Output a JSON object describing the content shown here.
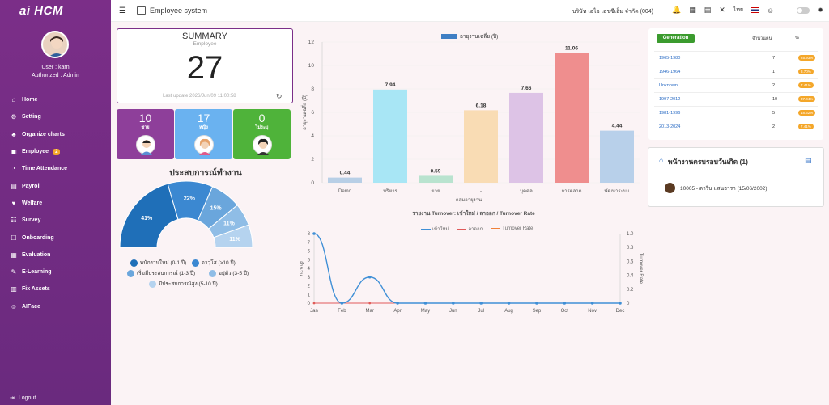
{
  "app": {
    "logo": "ai HCM",
    "system_title": "Employee system",
    "company": "บริษัท เอไอ เอชซีเอ็ม จำกัด (004)",
    "lang": "ไทย"
  },
  "user": {
    "name_line": "User : karn",
    "role_line": "Authorized : Admin"
  },
  "sidebar": {
    "items": [
      {
        "label": "Home",
        "icon": "home-icon"
      },
      {
        "label": "Setting",
        "icon": "settings-icon"
      },
      {
        "label": "Organize charts",
        "icon": "org-chart-icon"
      },
      {
        "label": "Employee",
        "icon": "employee-icon",
        "badge": "2"
      },
      {
        "label": "Time Attendance",
        "icon": "clock-icon"
      },
      {
        "label": "Payroll",
        "icon": "payroll-icon"
      },
      {
        "label": "Welfare",
        "icon": "welfare-icon"
      },
      {
        "label": "Survey",
        "icon": "survey-icon"
      },
      {
        "label": "Onboarding",
        "icon": "onboarding-icon"
      },
      {
        "label": "Evaluation",
        "icon": "evaluation-icon"
      },
      {
        "label": "E-Learning",
        "icon": "elearning-icon"
      },
      {
        "label": "Fix Assets",
        "icon": "assets-icon"
      },
      {
        "label": "AIFace",
        "icon": "face-icon"
      }
    ],
    "logout": "Logout"
  },
  "summary": {
    "title": "SUMMARY",
    "subtitle": "Employee",
    "count": "27",
    "updated": "Last update 2026/Jun/09 11:00:58"
  },
  "gender": [
    {
      "count": "10",
      "label": "ชาย",
      "color": "#8e3f9a"
    },
    {
      "count": "17",
      "label": "หญิง",
      "color": "#6ab2f0"
    },
    {
      "count": "0",
      "label": "ไม่ระบุ",
      "color": "#4fb33a"
    }
  ],
  "experience": {
    "title": "ประสบการณ์ทำงาน",
    "legend": [
      {
        "label": "พนักงานใหม่ (0-1 ปี)",
        "color": "#1f6fb8"
      },
      {
        "label": "อาวุโส (>10 ปี)",
        "color": "#3b88d1"
      },
      {
        "label": "เริ่มมีประสบการณ์ (1-3 ปี)",
        "color": "#6aa6dc"
      },
      {
        "label": "อยู่ตัว (3-5 ปี)",
        "color": "#8fbde6"
      },
      {
        "label": "มีประสบการณ์สูง (5-10 ปี)",
        "color": "#b5d3ef"
      }
    ]
  },
  "chart_data": [
    {
      "type": "bar",
      "title": "",
      "legend": [
        "อายุงานเฉลี่ย (ปี)"
      ],
      "ylabel": "อายุงานเฉลี่ย (ปี)",
      "xlabel": "กลุ่มอายุงาน",
      "categories": [
        "Demo",
        "บริหาร",
        "ขาย",
        "-",
        "บุคคล",
        "การตลาด",
        "พัฒนาระบบ"
      ],
      "values": [
        0.44,
        7.94,
        0.59,
        6.18,
        7.66,
        11.06,
        4.44
      ],
      "colors": [
        "#b8cfe6",
        "#a8e6f5",
        "#b9e3cf",
        "#f9dcb4",
        "#ddc3e6",
        "#ef8e8e",
        "#b8d0ea"
      ],
      "ylim": [
        0,
        12
      ],
      "yticks": [
        0,
        2,
        4,
        6,
        8,
        10,
        12
      ]
    },
    {
      "type": "line",
      "title": "รายงาน Turnover: เข้าใหม่ / ลาออก / Turnover Rate",
      "ylabel_left": "จำนวน",
      "ylabel_right": "Turnover Rate",
      "x": [
        "Jan",
        "Feb",
        "Mar",
        "Apr",
        "May",
        "Jun",
        "Jul",
        "Aug",
        "Sep",
        "Oct",
        "Nov",
        "Dec"
      ],
      "series": [
        {
          "name": "เข้าใหม่",
          "values": [
            8,
            0,
            3,
            0,
            0,
            0,
            0,
            0,
            0,
            0,
            0,
            0
          ],
          "color": "#3f8fd6",
          "axis": "left"
        },
        {
          "name": "ลาออก",
          "values": [
            0,
            0,
            0,
            0,
            0,
            0,
            0,
            0,
            0,
            0,
            0,
            0
          ],
          "color": "#e05a5a",
          "axis": "left"
        },
        {
          "name": "Turnover Rate",
          "values": [
            0,
            0,
            0,
            0,
            0,
            0,
            0,
            0,
            0,
            0,
            0,
            0
          ],
          "color": "#f0813a",
          "axis": "right"
        }
      ],
      "ylim_left": [
        0,
        8
      ],
      "yticks_left": [
        0,
        1,
        2,
        3,
        4,
        5,
        6,
        7,
        8
      ],
      "ylim_right": [
        0,
        1
      ],
      "yticks_right": [
        "0",
        "0.2",
        "0.4",
        "0.6",
        "0.8",
        "1.0"
      ]
    },
    {
      "type": "pie",
      "title": "ประสบการณ์ทำงาน",
      "categories": [
        "พนักงานใหม่ (0-1 ปี)",
        "อาวุโส (>10 ปี)",
        "เริ่มมีประสบการณ์ (1-3 ปี)",
        "อยู่ตัว (3-5 ปี)",
        "มีประสบการณ์สูง (5-10 ปี)"
      ],
      "values": [
        41,
        22,
        15,
        11,
        11
      ],
      "labels": [
        "41%",
        "22%",
        "15%",
        "11%",
        "11%"
      ]
    }
  ],
  "generation": {
    "header": "Generation",
    "col_count": "จำนวนคน",
    "col_pct": "%",
    "rows": [
      {
        "name": "1965-1980",
        "count": "7",
        "pct": "25.93%"
      },
      {
        "name": "1946-1964",
        "count": "1",
        "pct": "3.70%"
      },
      {
        "name": "Unknown",
        "count": "2",
        "pct": "7.41%"
      },
      {
        "name": "1997-2012",
        "count": "10",
        "pct": "37.04%"
      },
      {
        "name": "1981-1996",
        "count": "5",
        "pct": "18.52%"
      },
      {
        "name": "2013-2024",
        "count": "2",
        "pct": "7.41%"
      }
    ]
  },
  "birthday": {
    "title": "พนักงานครบรอบวันเกิด (1)",
    "entry": "10005 - ดารีน แสนธารา (15/06/2002)"
  }
}
